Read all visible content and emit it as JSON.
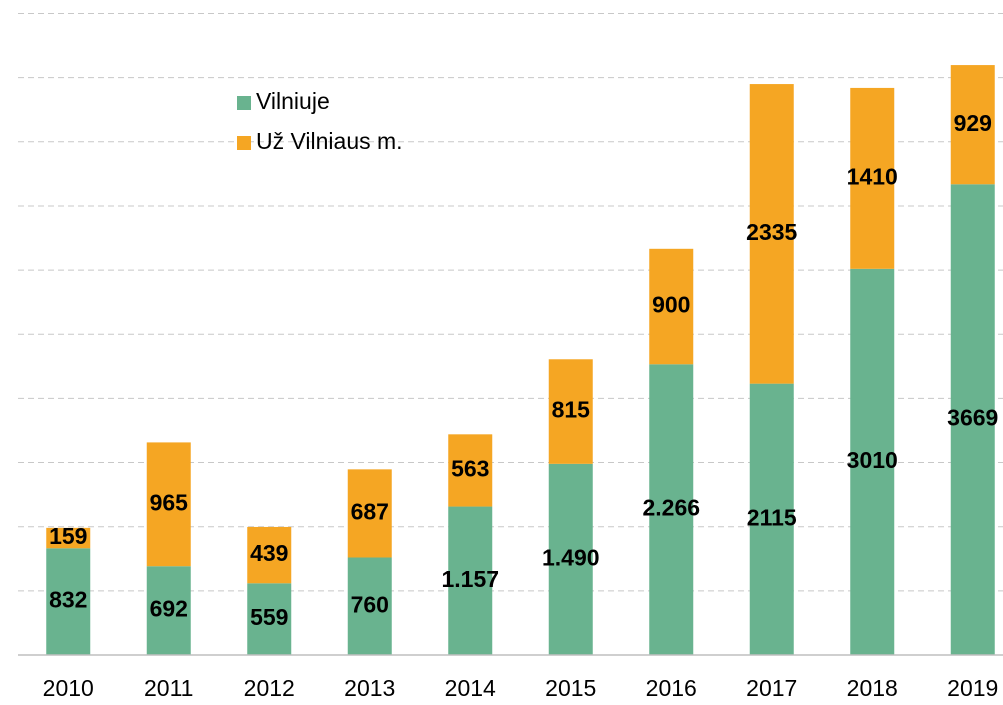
{
  "chart_data": {
    "type": "stacked_bar",
    "categories": [
      "2010",
      "2011",
      "2012",
      "2013",
      "2014",
      "2015",
      "2016",
      "2017",
      "2018",
      "2019"
    ],
    "series": [
      {
        "name": "Vilniuje",
        "color": "#69b38f",
        "values": [
          832,
          692,
          559,
          760,
          1157,
          1490,
          2266,
          2115,
          3010,
          3669
        ],
        "value_labels": [
          "832",
          "692",
          "559",
          "760",
          "1.157",
          "1.490",
          "2.266",
          "2115",
          "3010",
          "3669"
        ]
      },
      {
        "name": "Už Vilniaus m.",
        "color": "#f5a623",
        "values": [
          159,
          965,
          439,
          687,
          563,
          815,
          900,
          2335,
          1410,
          929
        ]
      }
    ],
    "ylim": [
      0,
      5000
    ],
    "yticks": [
      0,
      500,
      1000,
      1500,
      2000,
      2500,
      3000,
      3500,
      4000,
      4500,
      5000
    ],
    "grid": true,
    "legend": "top-left"
  }
}
